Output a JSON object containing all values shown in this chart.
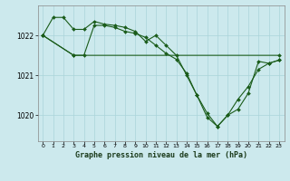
{
  "background_color": "#cce9ed",
  "grid_color": "#aad4da",
  "line_color": "#1a5c1a",
  "title": "Graphe pression niveau de la mer (hPa)",
  "xlim": [
    -0.5,
    23.5
  ],
  "ylim": [
    1019.35,
    1022.75
  ],
  "yticks": [
    1020,
    1021,
    1022
  ],
  "xticks": [
    0,
    1,
    2,
    3,
    4,
    5,
    6,
    7,
    8,
    9,
    10,
    11,
    12,
    13,
    14,
    15,
    16,
    17,
    18,
    19,
    20,
    21,
    22,
    23
  ],
  "series1_x": [
    0,
    1,
    2,
    3,
    4,
    5,
    6,
    7,
    8,
    9,
    10,
    11,
    12,
    13,
    14,
    15,
    16,
    17,
    18,
    19,
    20,
    21,
    22,
    23
  ],
  "series1_y": [
    1022.0,
    1022.45,
    1022.45,
    1022.15,
    1022.15,
    1022.35,
    1022.28,
    1022.25,
    1022.2,
    1022.1,
    1021.85,
    1022.0,
    1021.75,
    1021.5,
    1021.0,
    1020.5,
    1020.05,
    1019.72,
    1020.0,
    1020.4,
    1020.72,
    1021.15,
    1021.3,
    1021.38
  ],
  "series2_x": [
    0,
    3,
    4,
    5,
    6,
    7,
    8,
    9,
    10,
    11,
    12,
    13,
    14,
    15,
    16,
    17,
    18,
    19,
    20,
    21,
    22,
    23
  ],
  "series2_y": [
    1022.0,
    1021.5,
    1021.5,
    1022.25,
    1022.25,
    1022.2,
    1022.1,
    1022.05,
    1021.95,
    1021.75,
    1021.55,
    1021.4,
    1021.05,
    1020.5,
    1019.95,
    1019.72,
    1020.0,
    1020.15,
    1020.55,
    1021.35,
    1021.3,
    1021.38
  ],
  "series3_x": [
    0,
    3,
    23
  ],
  "series3_y": [
    1022.0,
    1021.5,
    1021.5
  ]
}
